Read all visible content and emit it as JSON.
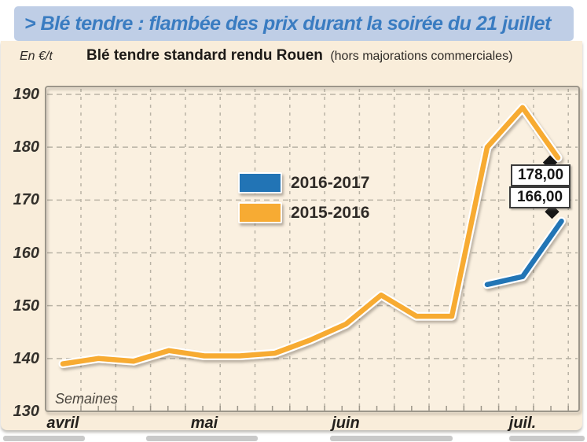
{
  "header": {
    "title": "> Blé tendre : flambée des prix durant la soirée du 21 juillet"
  },
  "subtitle": {
    "title": "Blé tendre standard rendu Rouen",
    "note": "(hors majorations commerciales)"
  },
  "colors": {
    "header_bg": "#bfcee6",
    "header_text": "#3a7cc1",
    "panel_bg": "#f9edda",
    "grid": "#b9b3a5",
    "plot_border": "#9c968a",
    "series_blue": "#2274b5",
    "series_orange": "#f7ab33"
  },
  "legend": {
    "items": [
      {
        "label": "2016-2017",
        "color": "#2274b5"
      },
      {
        "label": "2015-2016",
        "color": "#f7ab33"
      }
    ]
  },
  "chart_data": {
    "type": "line",
    "title": "Blé tendre standard rendu Rouen (hors majorations commerciales)",
    "ylabel": "En €/t",
    "xlabel": "Semaines",
    "ylim": [
      130,
      190
    ],
    "yticks": [
      130,
      140,
      150,
      160,
      170,
      180,
      190
    ],
    "x_unit": "week",
    "n_weeks": 15,
    "grid": "dashed",
    "legend_position": "center",
    "month_ticks": [
      {
        "label": "avril",
        "week": 0
      },
      {
        "label": "mai",
        "week": 4
      },
      {
        "label": "juin",
        "week": 8
      },
      {
        "label": "juil.",
        "week": 13
      }
    ],
    "series": [
      {
        "name": "2015-2016",
        "color": "#f7ab33",
        "points": [
          {
            "week": 0,
            "value": 139
          },
          {
            "week": 1,
            "value": 140
          },
          {
            "week": 2,
            "value": 139.5
          },
          {
            "week": 3,
            "value": 141.5
          },
          {
            "week": 4,
            "value": 140.5
          },
          {
            "week": 5,
            "value": 140.5
          },
          {
            "week": 6,
            "value": 141
          },
          {
            "week": 7,
            "value": 143.5
          },
          {
            "week": 8,
            "value": 146.5
          },
          {
            "week": 9,
            "value": 152
          },
          {
            "week": 10,
            "value": 148
          },
          {
            "week": 11,
            "value": 148
          },
          {
            "week": 12,
            "value": 180
          },
          {
            "week": 13,
            "value": 187.5
          },
          {
            "week": 14,
            "value": 178
          }
        ]
      },
      {
        "name": "2016-2017",
        "color": "#2274b5",
        "points": [
          {
            "week": 12,
            "value": 154
          },
          {
            "week": 13,
            "value": 155.5
          },
          {
            "week": 14.1,
            "value": 166
          }
        ]
      }
    ],
    "annotations": [
      {
        "text": "178,00",
        "series": "2015-2016",
        "value": 178,
        "marker": "up"
      },
      {
        "text": "166,00",
        "series": "2016-2017",
        "value": 166,
        "marker": "down"
      }
    ]
  }
}
